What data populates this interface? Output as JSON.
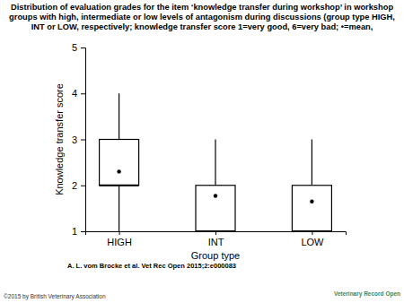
{
  "chart_data": {
    "type": "box",
    "title": "Distribution of evaluation grades for the item ‘knowledge transfer during workshop’ in workshop groups with high, intermediate or low levels of antagonism during discussions (group type HIGH, INT or LOW, respectively; knowledge transfer score 1=very good, 6=very bad; •=mean,",
    "x_label": "Group type",
    "y_label": "Knowledge transfer score",
    "categories": [
      "HIGH",
      "INT",
      "LOW"
    ],
    "whisker_low": [
      1,
      1,
      1
    ],
    "q1": [
      2,
      1,
      1
    ],
    "median": [
      2,
      1,
      1
    ],
    "q3": [
      3,
      2,
      2
    ],
    "whisker_high": [
      4,
      3,
      3
    ],
    "mean": [
      2.3,
      1.77,
      1.65
    ],
    "ylim": [
      1,
      5
    ],
    "yticks": [
      1,
      2,
      3,
      4,
      5
    ],
    "color": "#000000",
    "marker": "dot",
    "annotations": [
      "A. L. vom Brocke et al. Vet Rec Open 2015;2:e000083",
      "©2015 by British Veterinary Association",
      "Veterinary Record Open"
    ]
  }
}
